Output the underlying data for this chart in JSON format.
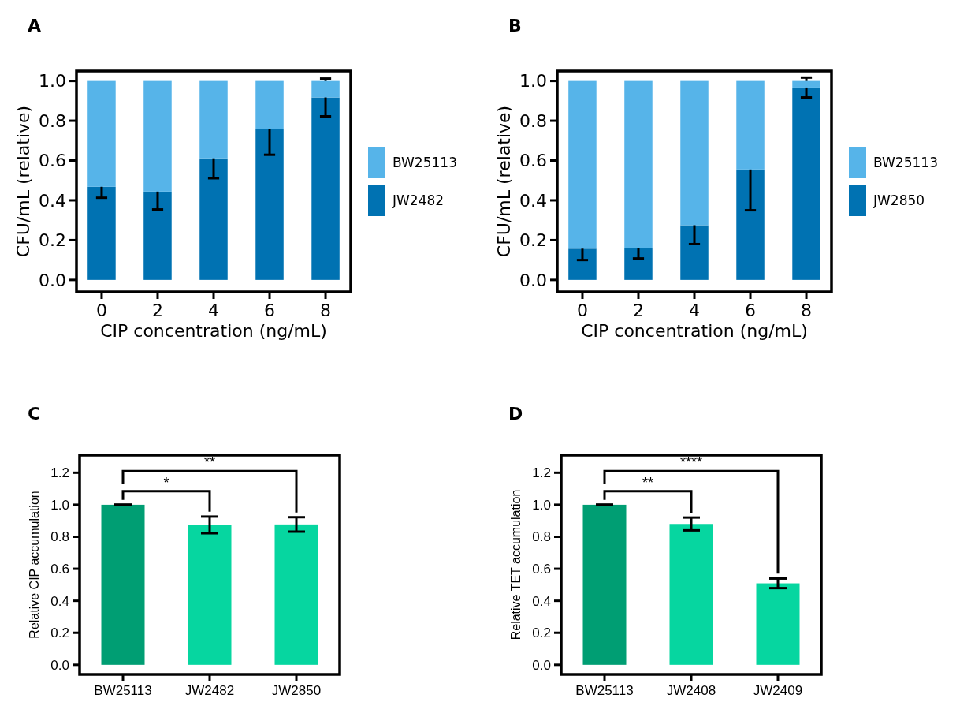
{
  "chart_data": [
    {
      "type": "bar",
      "title": "A",
      "xlabel": "CIP concentration (ng/mL)",
      "ylabel": "CFU/mL (relative)",
      "categories": [
        "0",
        "2",
        "4",
        "6",
        "8"
      ],
      "stacked": true,
      "legend": "right",
      "series": [
        {
          "name": "JW2482",
          "color": "#0072b2",
          "values": [
            0.468,
            0.444,
            0.611,
            0.759,
            0.917
          ],
          "errors": [
            0.055,
            0.09,
            0.1,
            0.13,
            0.095
          ]
        },
        {
          "name": "BW25113",
          "color": "#56b4e9",
          "values": [
            0.532,
            0.556,
            0.389,
            0.241,
            0.083
          ]
        }
      ],
      "ylim": [
        -0.06,
        1.05
      ],
      "yticks": [
        {
          "value": 0,
          "label": "0.0"
        },
        {
          "value": 0.2,
          "label": "0.2"
        },
        {
          "value": 0.4,
          "label": "0.4"
        },
        {
          "value": 0.6,
          "label": "0.6"
        },
        {
          "value": 0.8,
          "label": "0.8"
        },
        {
          "value": 1,
          "label": "1.0"
        }
      ]
    },
    {
      "type": "bar",
      "title": "B",
      "xlabel": "CIP concentration (ng/mL)",
      "ylabel": "CFU/mL (relative)",
      "categories": [
        "0",
        "2",
        "4",
        "6",
        "8"
      ],
      "stacked": true,
      "legend": "right",
      "series": [
        {
          "name": "JW2850",
          "color": "#0072b2",
          "values": [
            0.157,
            0.158,
            0.275,
            0.555,
            0.967
          ],
          "errors": [
            0.057,
            0.05,
            0.095,
            0.205,
            0.05
          ]
        },
        {
          "name": "BW25113",
          "color": "#56b4e9",
          "values": [
            0.843,
            0.842,
            0.725,
            0.445,
            0.033
          ]
        }
      ],
      "ylim": [
        -0.06,
        1.05
      ],
      "yticks": [
        {
          "value": 0,
          "label": "0.0"
        },
        {
          "value": 0.2,
          "label": "0.2"
        },
        {
          "value": 0.4,
          "label": "0.4"
        },
        {
          "value": 0.6,
          "label": "0.6"
        },
        {
          "value": 0.8,
          "label": "0.8"
        },
        {
          "value": 1,
          "label": "1.0"
        }
      ]
    },
    {
      "type": "bar",
      "title": "C",
      "ylabel": "Relative CIP accumulation",
      "categories": [
        "BW25113",
        "JW2482",
        "JW2850"
      ],
      "values": [
        1.0,
        0.874,
        0.877
      ],
      "colors": [
        "#009e73",
        "#06d6a0",
        "#06d6a0"
      ],
      "errors": [
        0,
        0.052,
        0.045
      ],
      "ylim": [
        -0.06,
        1.31
      ],
      "yticks": [
        {
          "value": 0,
          "label": "0.0"
        },
        {
          "value": 0.2,
          "label": "0.2"
        },
        {
          "value": 0.4,
          "label": "0.4"
        },
        {
          "value": 0.6,
          "label": "0.6"
        },
        {
          "value": 0.8,
          "label": "0.8"
        },
        {
          "value": 1,
          "label": "1.0"
        },
        {
          "value": 1.2,
          "label": "1.2"
        }
      ],
      "annotations": [
        "*",
        "**"
      ]
    },
    {
      "type": "bar",
      "title": "D",
      "ylabel": "Relative TET accumulation",
      "categories": [
        "BW25113",
        "JW2408",
        "JW2409"
      ],
      "values": [
        1.0,
        0.88,
        0.509
      ],
      "colors": [
        "#009e73",
        "#06d6a0",
        "#06d6a0"
      ],
      "errors": [
        0,
        0.04,
        0.03
      ],
      "ylim": [
        -0.06,
        1.31
      ],
      "yticks": [
        {
          "value": 0,
          "label": "0.0"
        },
        {
          "value": 0.2,
          "label": "0.2"
        },
        {
          "value": 0.4,
          "label": "0.4"
        },
        {
          "value": 0.6,
          "label": "0.6"
        },
        {
          "value": 0.8,
          "label": "0.8"
        },
        {
          "value": 1,
          "label": "1.0"
        },
        {
          "value": 1.2,
          "label": "1.2"
        }
      ],
      "annotations": [
        "**",
        "****"
      ]
    }
  ]
}
